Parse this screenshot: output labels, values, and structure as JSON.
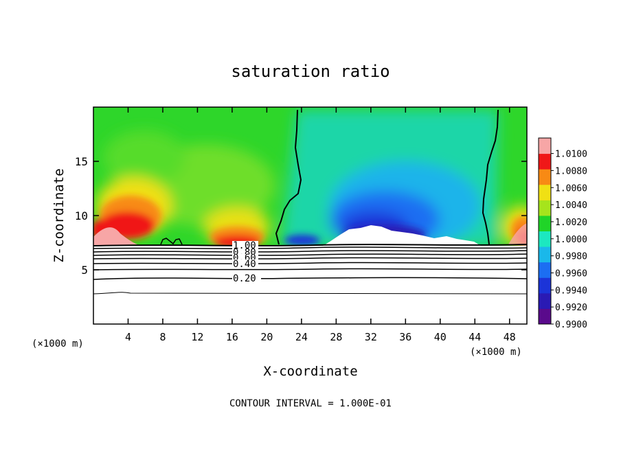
{
  "chart_data": {
    "type": "heatmap",
    "title": "saturation ratio",
    "xlabel": "X-coordinate",
    "ylabel": "Z-coordinate",
    "x_unit_left": "(×1000 m)",
    "x_unit_right": "(×1000 m)",
    "xlim": [
      0,
      50
    ],
    "ylim": [
      0,
      20
    ],
    "x_ticks": [
      4,
      8,
      12,
      16,
      20,
      24,
      28,
      32,
      36,
      40,
      44,
      48
    ],
    "y_ticks": [
      5,
      10,
      15
    ],
    "colorbar": {
      "levels": [
        "0.9900",
        "0.9920",
        "0.9940",
        "0.9960",
        "0.9980",
        "1.0000",
        "1.0020",
        "1.0040",
        "1.0060",
        "1.0080",
        "1.0100"
      ],
      "colors": [
        "#5a0a8c",
        "#2a1ab4",
        "#1c34d8",
        "#1c6ef2",
        "#1ab8ea",
        "#1ce8c0",
        "#20d428",
        "#a6e41c",
        "#f0e014",
        "#f88a14",
        "#f01818",
        "#f7a6a6"
      ]
    },
    "contour_lines": [
      {
        "label": "0.20",
        "value": 0.2,
        "z": 4.4
      },
      {
        "label": "0.40",
        "value": 0.4,
        "z": 5.9
      },
      {
        "label": "0.60",
        "value": 0.6,
        "z": 6.5
      },
      {
        "label": "0.80",
        "value": 0.8,
        "z": 6.9
      },
      {
        "label": "1.00",
        "value": 1.0,
        "z": 7.2
      }
    ],
    "footer": "CONTOUR INTERVAL = 1.000E-01"
  }
}
